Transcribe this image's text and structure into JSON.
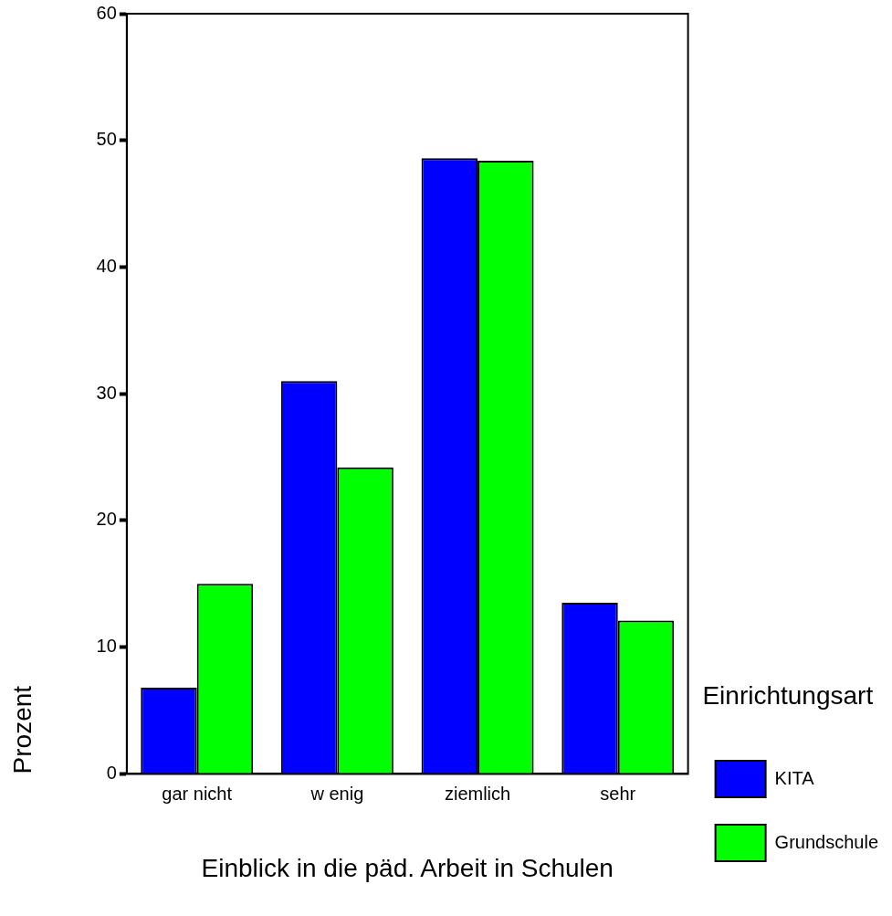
{
  "chart_data": {
    "type": "bar",
    "xlabel": "Einblick in die päd. Arbeit in Schulen",
    "ylabel": "Prozent",
    "legend_title": "Einrichtungsart",
    "categories": [
      "gar nicht",
      "w enig",
      "ziemlich",
      "sehr"
    ],
    "series": [
      {
        "name": "KITA",
        "color": "#0000ff",
        "values": [
          6.8,
          31.0,
          48.6,
          13.5
        ]
      },
      {
        "name": "Grundschule",
        "color": "#00ff00",
        "values": [
          15.0,
          24.2,
          48.4,
          12.1
        ]
      }
    ],
    "ylim": [
      0,
      60
    ],
    "yticks": [
      0,
      10,
      20,
      30,
      40,
      50,
      60
    ],
    "grid": false,
    "legend": "right"
  }
}
